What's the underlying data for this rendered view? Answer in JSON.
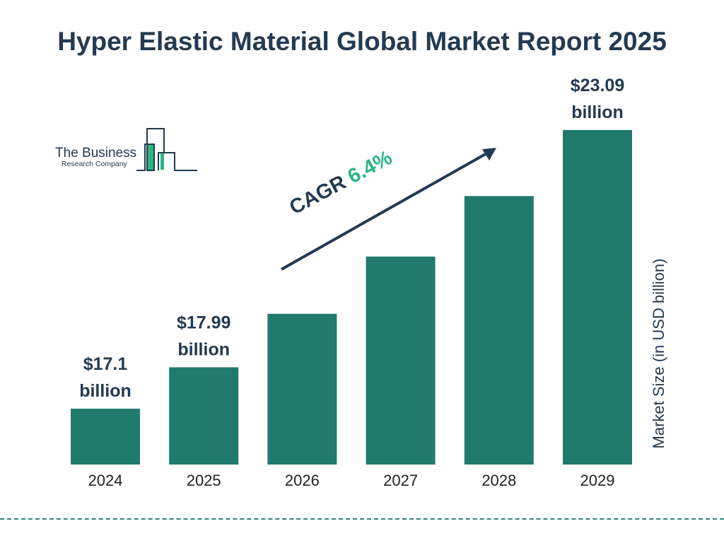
{
  "chart_data": {
    "type": "bar",
    "title": "Hyper Elastic Material Global Market Report 2025",
    "ylabel": "Market Size (in USD billion)",
    "categories": [
      "2024",
      "2025",
      "2026",
      "2027",
      "2028",
      "2029"
    ],
    "values": [
      17.1,
      17.99,
      19.14,
      20.37,
      21.67,
      23.09
    ],
    "data_labels": [
      "$17.1 billion",
      "$17.99 billion",
      "",
      "",
      "",
      "$23.09 billion"
    ],
    "annotation": {
      "label": "CAGR",
      "value": "6.4%"
    },
    "bar_color": "#207b6c",
    "grid": false
  },
  "logo": {
    "line1": "The Business",
    "line2": "Research Company"
  }
}
